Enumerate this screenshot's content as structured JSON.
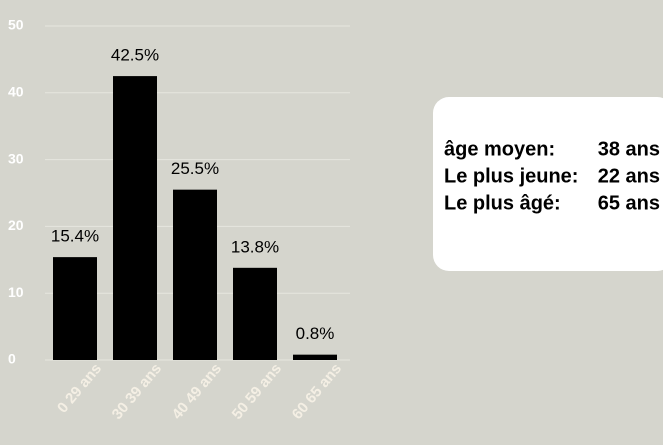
{
  "chart_data": {
    "type": "bar",
    "categories": [
      "0 29 ans",
      "30 39 ans",
      "40 49 ans",
      "50 59 ans",
      "60 65 ans"
    ],
    "values": [
      15.4,
      42.5,
      25.5,
      13.8,
      0.8
    ],
    "value_labels": [
      "15.4%",
      "42.5%",
      "25.5%",
      "13.8%",
      "0.8%"
    ],
    "color": "#000000",
    "ylim": [
      0,
      50
    ],
    "yticks": [
      0,
      10,
      20,
      30,
      40,
      50
    ],
    "grid": true,
    "annotations": [
      {
        "label": "âge moyen:",
        "value": "38 ans"
      },
      {
        "label": "Le plus jeune:",
        "value": "22 ans"
      },
      {
        "label": "Le plus âgé:",
        "value": "65 ans"
      }
    ]
  }
}
